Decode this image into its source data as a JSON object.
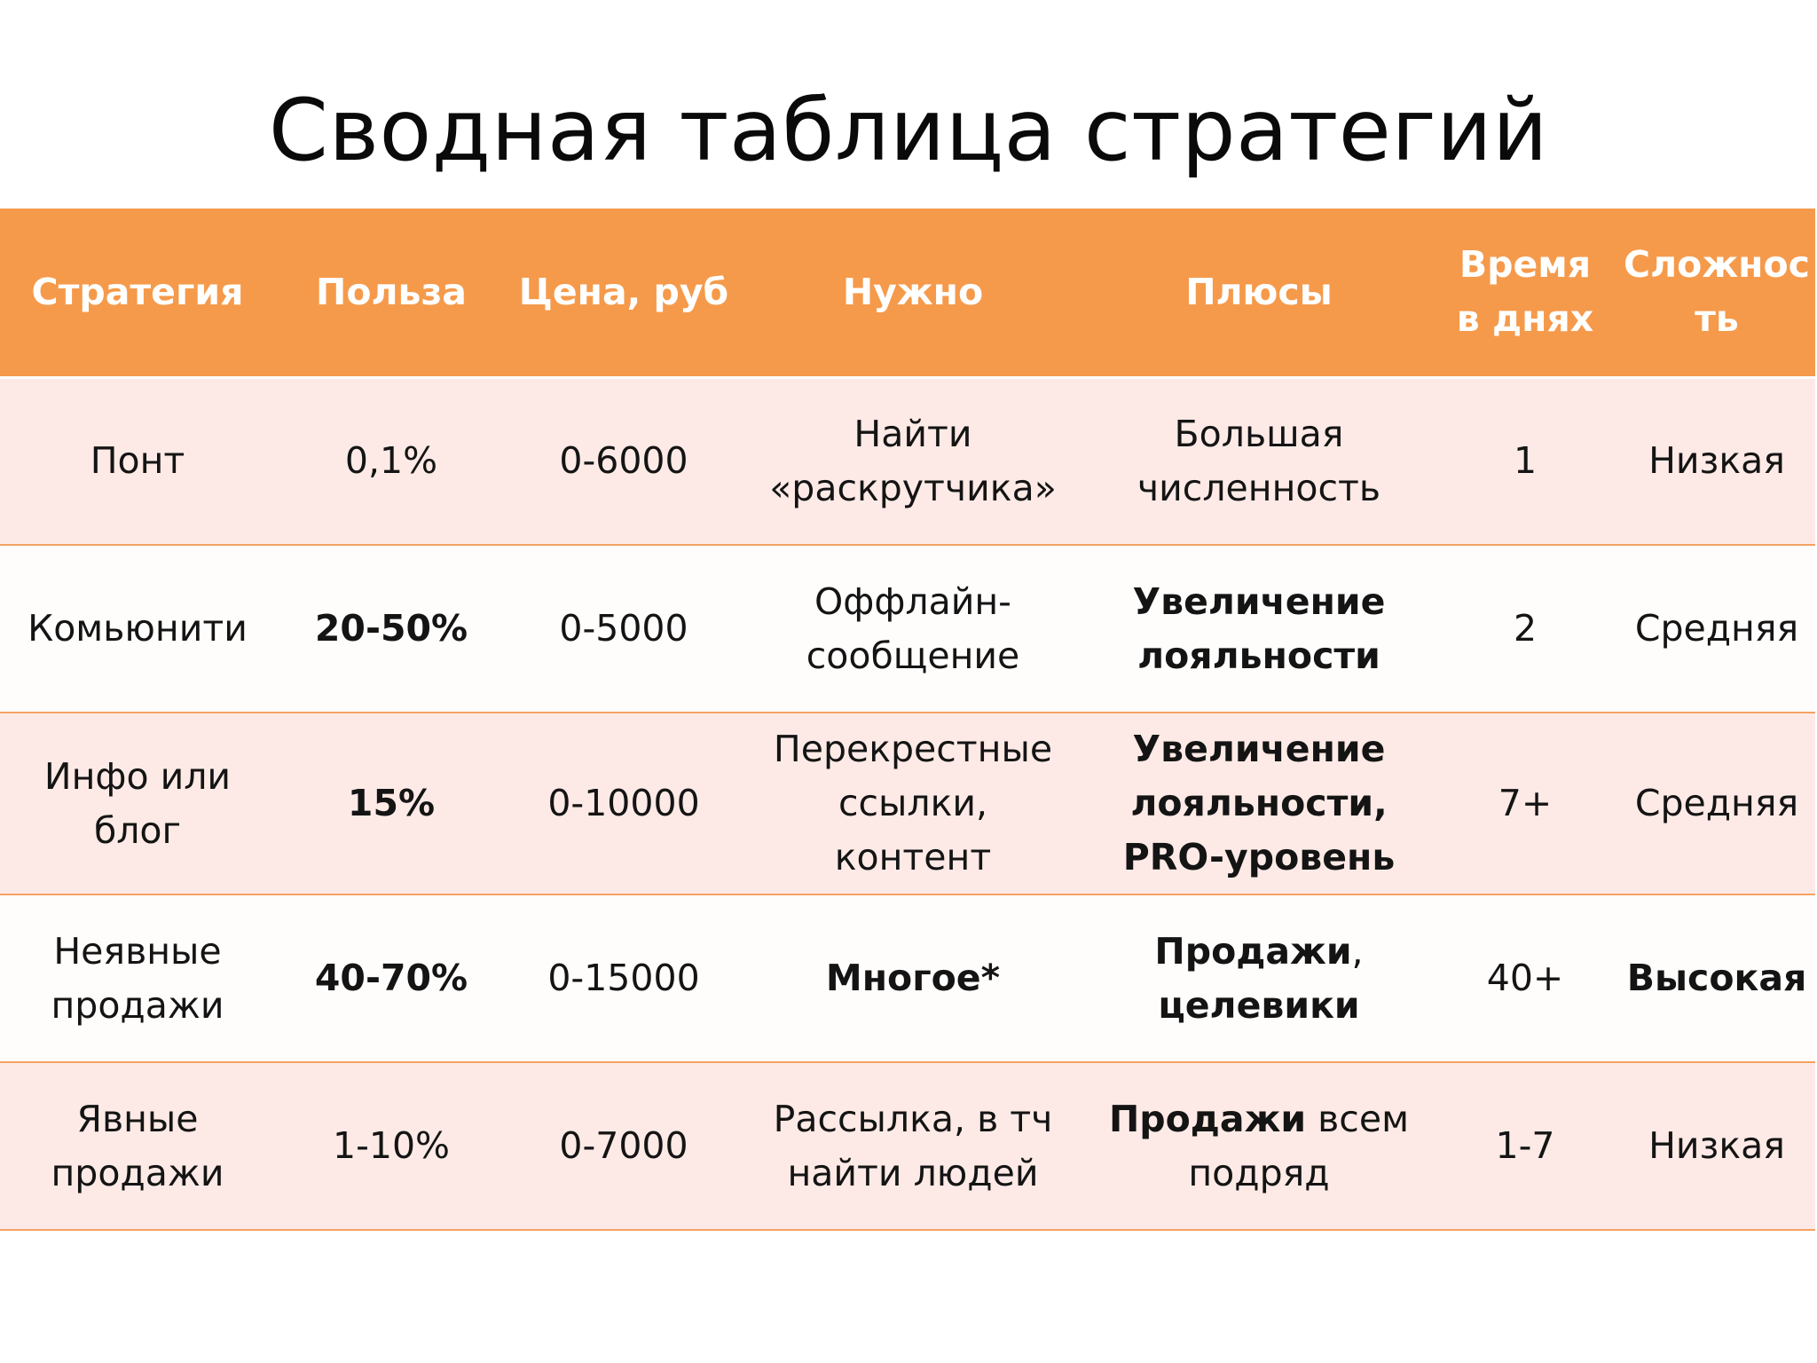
{
  "title": "Сводная таблица стратегий",
  "headers": [
    [
      "Стратегия"
    ],
    [
      "Польза"
    ],
    [
      "Цена, руб"
    ],
    [
      "Нужно"
    ],
    [
      "Плюсы"
    ],
    [
      "Время",
      "в днях"
    ],
    [
      "Сложнос",
      "ть"
    ]
  ],
  "rows": [
    {
      "strategy": [
        "Понт"
      ],
      "benefit": "0,1%",
      "price": "0-6000",
      "needed": [
        "Найти",
        "«раскрутчика»"
      ],
      "pros": [
        "Большая",
        "численность"
      ],
      "time": "1",
      "difficulty": "Низкая"
    },
    {
      "strategy": [
        "Комьюнити"
      ],
      "benefit": "20-50%",
      "price": "0-5000",
      "needed": [
        "Оффлайн-",
        "сообщение"
      ],
      "pros": [
        "Увеличение",
        "лояльности"
      ],
      "time": "2",
      "difficulty": "Средняя"
    },
    {
      "strategy": [
        "Инфо или",
        "блог"
      ],
      "benefit": "15%",
      "price": "0-10000",
      "needed": [
        "Перекрестные",
        "ссылки,",
        "контент"
      ],
      "pros": [
        "Увеличение",
        "лояльности,",
        "PRO-уровень"
      ],
      "time": "7+",
      "difficulty": "Средняя"
    },
    {
      "strategy": [
        "Неявные",
        "продажи"
      ],
      "benefit": "40-70%",
      "price": "0-15000",
      "needed": [
        "Многое*"
      ],
      "pros_bold": "Продажи",
      "pros_rest": ",",
      "pros_line2": "целевики",
      "time": "40+",
      "difficulty": "Высокая"
    },
    {
      "strategy": [
        "Явные",
        "продажи"
      ],
      "benefit": "1-10%",
      "price": "0-7000",
      "needed": [
        "Рассылка, в тч",
        "найти людей"
      ],
      "pros_bold": "Продажи",
      "pros_rest": " всем",
      "pros_line2": "подряд",
      "time": "1-7",
      "difficulty": "Низкая"
    }
  ]
}
